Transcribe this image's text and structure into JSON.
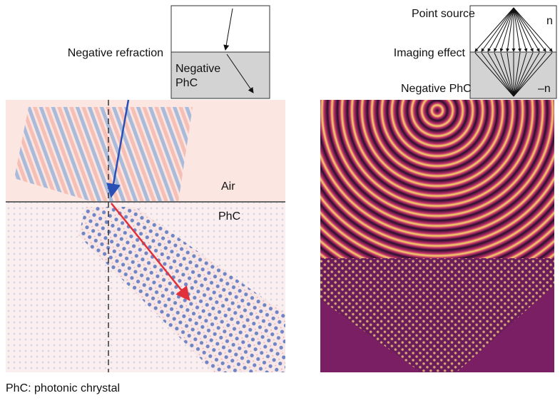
{
  "left_panel": {
    "title": "Negative refraction",
    "inset_label_lines": [
      "Negative",
      "PhC"
    ],
    "upper_label": "Air",
    "lower_label": "PhC"
  },
  "right_panel": {
    "source_label": "Point source",
    "upper_index": "n",
    "title": "Imaging effect",
    "lower_label": "Negative PhC",
    "lower_index": "–n"
  },
  "caption": "PhC: photonic chrystal"
}
